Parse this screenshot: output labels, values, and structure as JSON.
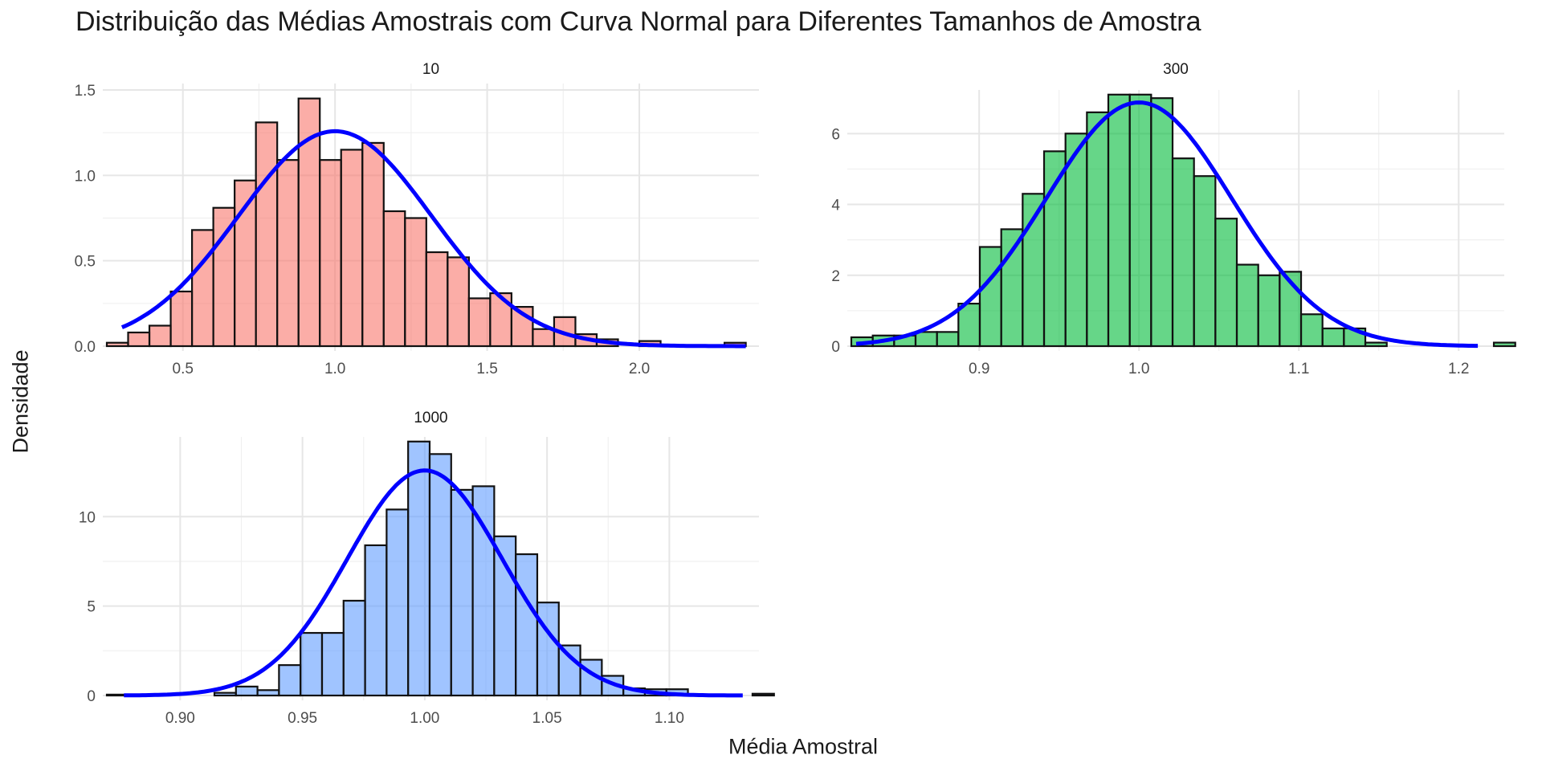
{
  "chart_data": {
    "type": "bar",
    "title": "Distribuição das Médias Amostrais com Curva Normal para Diferentes Tamanhos de Amostra",
    "xlabel": "Média Amostral",
    "ylabel": "Densidade",
    "grid": true,
    "legend": "none",
    "panels": [
      {
        "label": "10",
        "fill": "#F8766D",
        "xlim": [
          0.25,
          2.38
        ],
        "ylim": [
          0,
          1.5
        ],
        "xticks": [
          0.5,
          1.0,
          1.5,
          2.0
        ],
        "xtick_labels": [
          "0.5",
          "1.0",
          "1.5",
          "2.0"
        ],
        "yticks": [
          0,
          0.5,
          1.0,
          1.5
        ],
        "ytick_labels": [
          "0.0",
          "0.5",
          "1.0",
          "1.5"
        ],
        "bin_start": 0.25,
        "bin_width": 0.07,
        "densities": [
          0.02,
          0.08,
          0.12,
          0.32,
          0.68,
          0.81,
          0.97,
          1.31,
          1.09,
          1.45,
          1.09,
          1.15,
          1.19,
          0.79,
          0.75,
          0.55,
          0.52,
          0.28,
          0.31,
          0.23,
          0.1,
          0.17,
          0.07,
          0.04,
          0.0,
          0.03,
          0.0,
          0.0,
          0.0,
          0.02
        ],
        "normal": {
          "mean": 1.0,
          "sd": 0.317,
          "x_range": [
            0.3,
            2.35
          ]
        }
      },
      {
        "label": "300",
        "fill": "#00BA38",
        "xlim": [
          0.82,
          1.226
        ],
        "ylim": [
          0,
          7.05
        ],
        "xticks": [
          0.9,
          1.0,
          1.1,
          1.2
        ],
        "xtick_labels": [
          "0.9",
          "1.0",
          "1.1",
          "1.2"
        ],
        "yticks": [
          0,
          2,
          4,
          6
        ],
        "ytick_labels": [
          "0",
          "2",
          "4",
          "6"
        ],
        "bin_start": 0.82,
        "bin_width": 0.0134,
        "densities": [
          0.25,
          0.3,
          0.3,
          0.4,
          0.4,
          1.2,
          2.8,
          3.3,
          4.3,
          5.5,
          6.0,
          6.6,
          7.1,
          7.1,
          7.0,
          5.3,
          4.8,
          3.6,
          2.3,
          2.0,
          2.1,
          0.9,
          0.5,
          0.5,
          0.1,
          0.0,
          0.0,
          0.0,
          0.0,
          0.0,
          0.1
        ],
        "normal": {
          "mean": 1.0,
          "sd": 0.058,
          "x_range": [
            0.823,
            1.212
          ]
        }
      },
      {
        "label": "1000",
        "fill": "#619CFF",
        "xlim": [
          0.87,
          1.135
        ],
        "ylim": [
          0,
          14.1
        ],
        "xticks": [
          0.9,
          0.95,
          1.0,
          1.05,
          1.1
        ],
        "xtick_labels": [
          "0.90",
          "0.95",
          "1.00",
          "1.05",
          "1.10"
        ],
        "yticks": [
          0,
          5,
          10
        ],
        "ytick_labels": [
          "0",
          "5",
          "10"
        ],
        "bin_start": 0.87,
        "bin_width": 0.0088,
        "densities": [
          0.05,
          0.0,
          0.0,
          0.0,
          0.0,
          0.15,
          0.5,
          0.3,
          1.7,
          3.5,
          3.5,
          5.3,
          8.4,
          10.4,
          14.2,
          13.5,
          11.5,
          11.7,
          8.9,
          7.9,
          5.2,
          2.8,
          2.0,
          1.1,
          0.4,
          0.35,
          0.35,
          0.0,
          0.0,
          0.0,
          0.1
        ],
        "normal": {
          "mean": 1.0,
          "sd": 0.0317,
          "x_range": [
            0.877,
            1.13
          ]
        }
      }
    ]
  }
}
